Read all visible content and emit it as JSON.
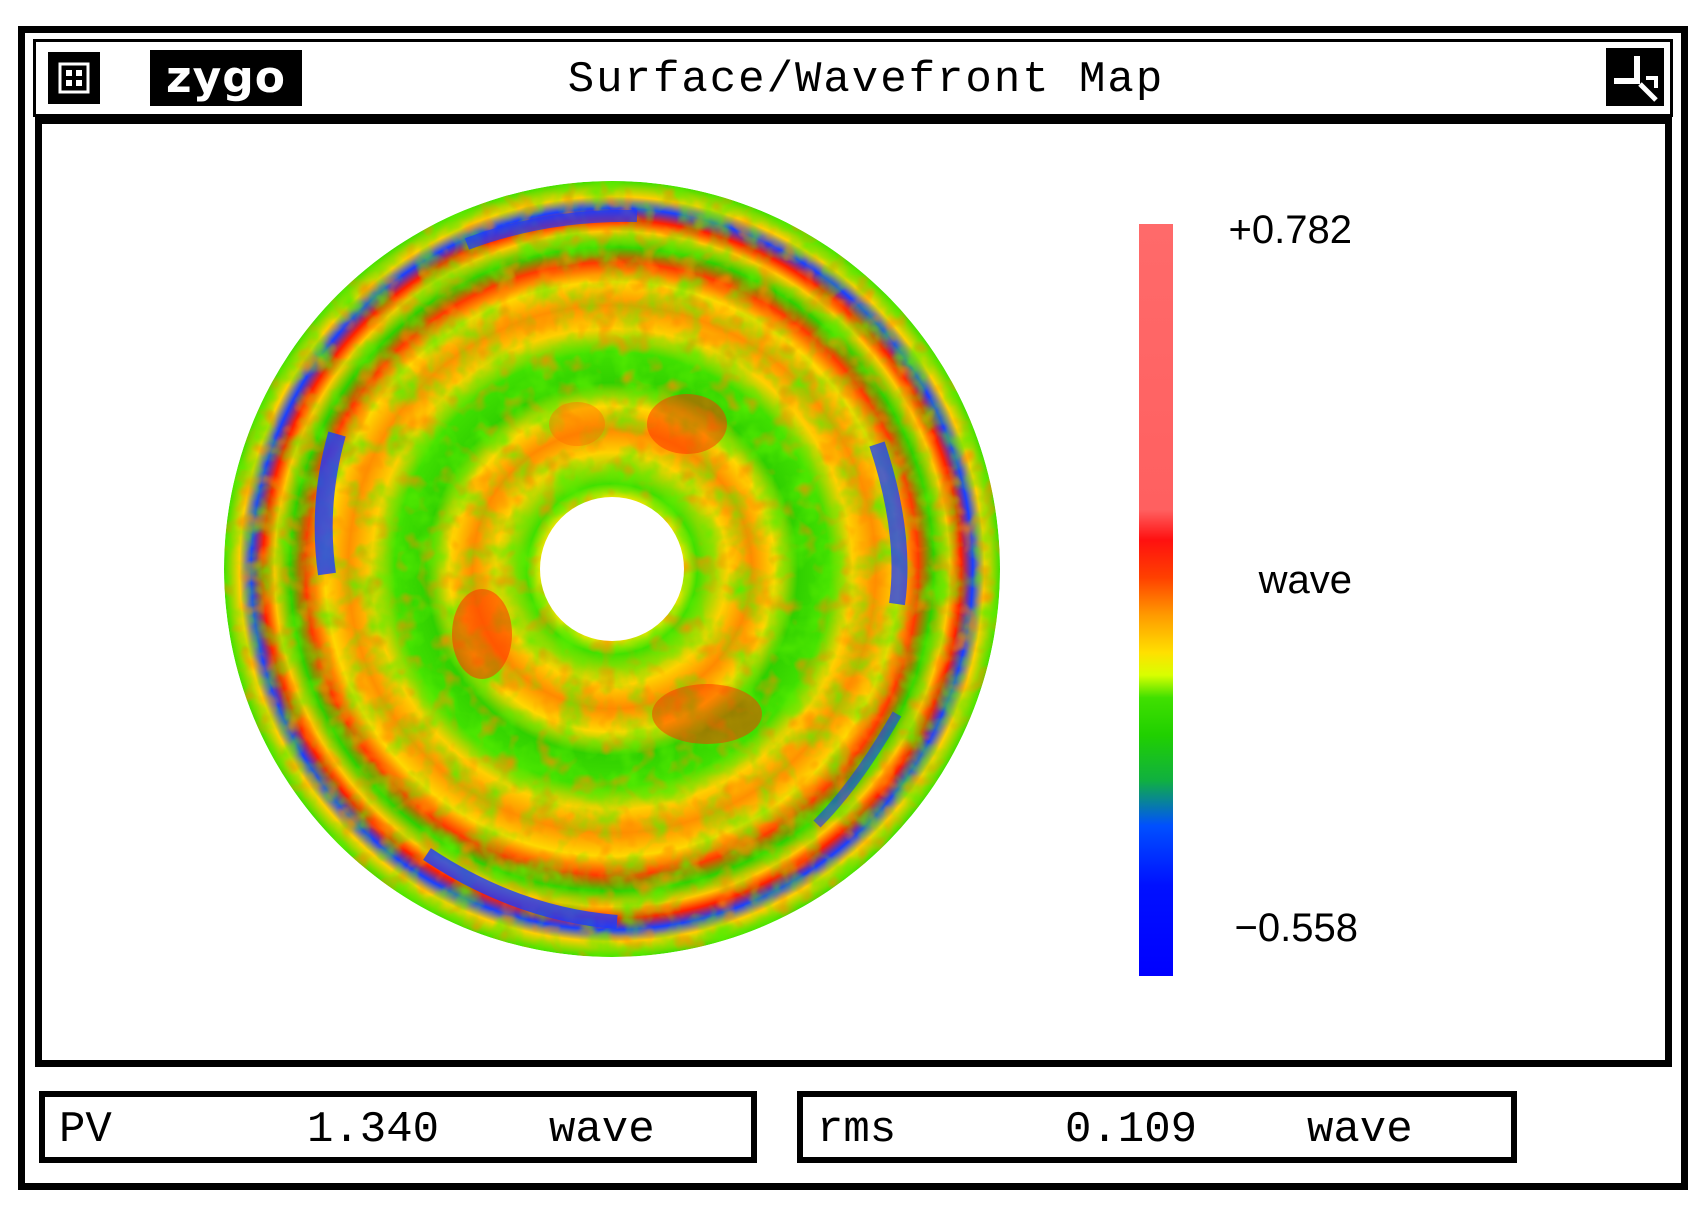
{
  "window": {
    "title": "Surface/Wavefront Map",
    "logo": "zygo",
    "menu_icon": "window-menu-icon",
    "resize_icon": "window-resize-icon"
  },
  "colorbar": {
    "max_label": "+0.782",
    "unit_label": "wave",
    "min_label": "−0.558",
    "max_color": "#ff6a6a",
    "min_color": "#0000ff"
  },
  "stats": {
    "pv": {
      "label": "PV",
      "value": "1.340",
      "unit": "wave"
    },
    "rms": {
      "label": "rms",
      "value": "0.109",
      "unit": "wave"
    }
  }
}
